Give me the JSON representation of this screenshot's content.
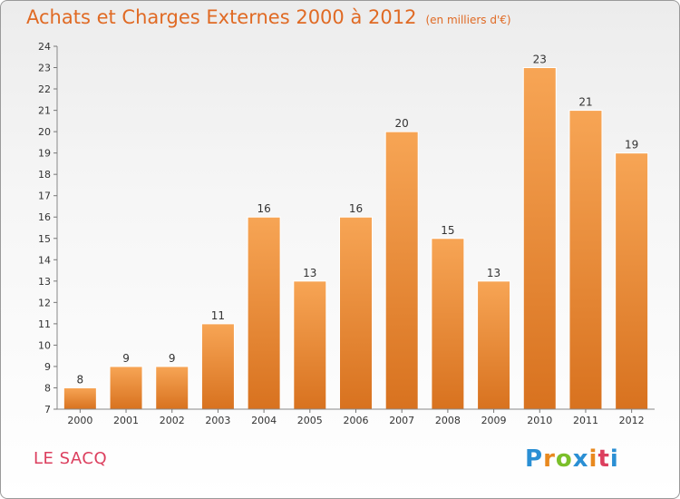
{
  "title": "Achats et Charges Externes 2000 à 2012",
  "subtitle": "(en milliers d'€)",
  "city": "LE SACQ",
  "logo": {
    "text": "Proxiti",
    "letters": [
      "P",
      "r",
      "o",
      "x",
      "i",
      "t",
      "i"
    ],
    "colors": [
      "#2a8fd4",
      "#e8891f",
      "#7bbf2a",
      "#2a8fd4",
      "#e8891f",
      "#dc3f5e",
      "#2a8fd4"
    ]
  },
  "colors": {
    "bar_top": "#f7a555",
    "bar_bottom": "#d8721f",
    "bar_edge": "#ffffff",
    "axis": "#888888",
    "grid_tick": "#777777",
    "title": "#e06a24",
    "city": "#dc3f5e"
  },
  "chart_data": {
    "type": "bar",
    "categories": [
      "2000",
      "2001",
      "2002",
      "2003",
      "2004",
      "2005",
      "2006",
      "2007",
      "2008",
      "2009",
      "2010",
      "2011",
      "2012"
    ],
    "values": [
      8,
      9,
      9,
      11,
      16,
      13,
      16,
      20,
      15,
      13,
      23,
      21,
      19
    ],
    "ylim": [
      7,
      24
    ],
    "yticks": [
      7,
      8,
      9,
      10,
      11,
      12,
      13,
      14,
      15,
      16,
      17,
      18,
      19,
      20,
      21,
      22,
      23,
      24
    ],
    "grid": false,
    "data_labels": true
  }
}
